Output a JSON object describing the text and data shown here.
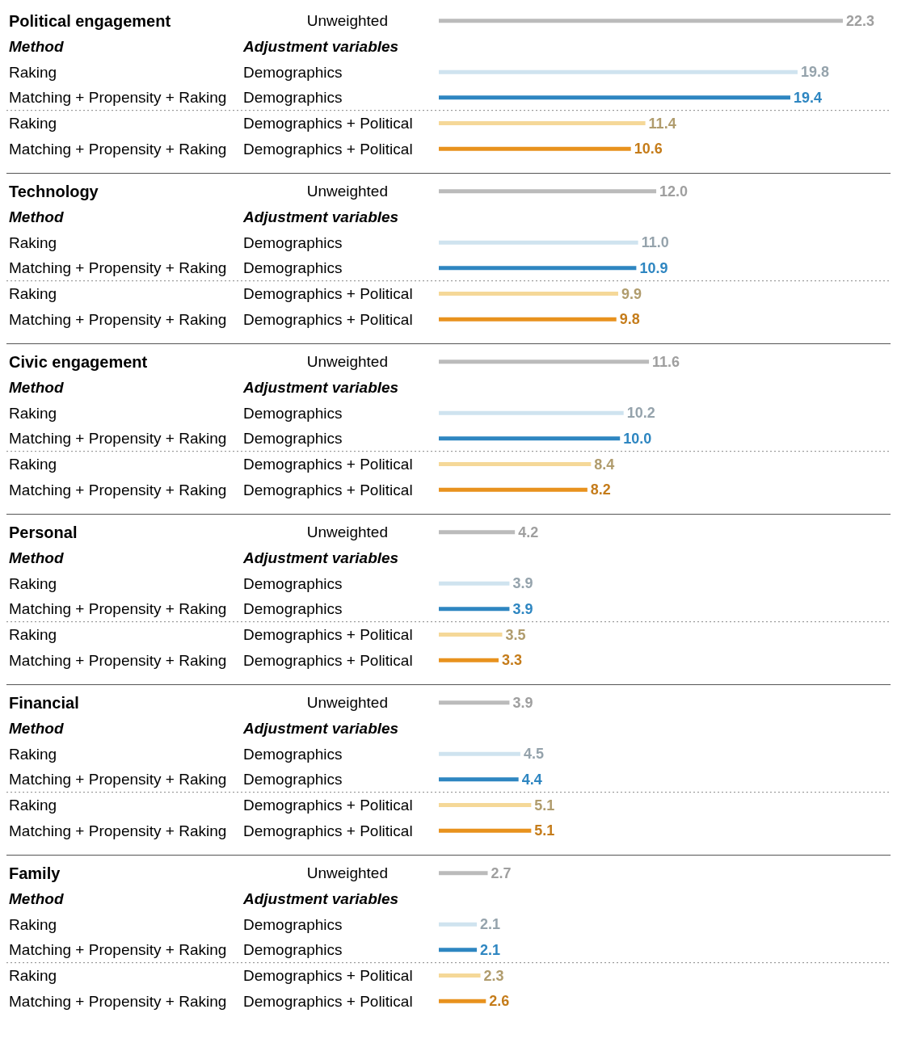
{
  "chart_data": [
    {
      "type": "bar",
      "orientation": "horizontal",
      "title": "Political engagement",
      "categories": [
        null,
        "Method",
        "Raking",
        "Matching + Propensity + Raking",
        "Raking",
        "Matching + Propensity + Raking"
      ],
      "y2_categories": [
        "Unweighted",
        "Adjustment variables",
        "Demographics",
        "Demographics",
        "Demographics + Political",
        "Demographics + Political"
      ],
      "values": [
        22.3,
        null,
        19.8,
        19.4,
        11.4,
        10.6
      ],
      "value_labels": [
        "22.3",
        null,
        "19.8",
        "19.4",
        "11.4",
        "10.6"
      ],
      "colors": [
        "#bbbbbb",
        null,
        "#cfe3ef",
        "#2e86c1",
        "#f5d898",
        "#e8921e"
      ]
    },
    {
      "type": "bar",
      "orientation": "horizontal",
      "title": "Technology",
      "categories": [
        null,
        "Method",
        "Raking",
        "Matching + Propensity + Raking",
        "Raking",
        "Matching + Propensity + Raking"
      ],
      "y2_categories": [
        "Unweighted",
        "Adjustment variables",
        "Demographics",
        "Demographics",
        "Demographics + Political",
        "Demographics + Political"
      ],
      "values": [
        12.0,
        null,
        11.0,
        10.9,
        9.9,
        9.8
      ],
      "value_labels": [
        "12.0",
        null,
        "11.0",
        "10.9",
        "9.9",
        "9.8"
      ],
      "colors": [
        "#bbbbbb",
        null,
        "#cfe3ef",
        "#2e86c1",
        "#f5d898",
        "#e8921e"
      ]
    },
    {
      "type": "bar",
      "orientation": "horizontal",
      "title": "Civic engagement",
      "categories": [
        null,
        "Method",
        "Raking",
        "Matching + Propensity + Raking",
        "Raking",
        "Matching + Propensity + Raking"
      ],
      "y2_categories": [
        "Unweighted",
        "Adjustment variables",
        "Demographics",
        "Demographics",
        "Demographics + Political",
        "Demographics + Political"
      ],
      "values": [
        11.6,
        null,
        10.2,
        10.0,
        8.4,
        8.2
      ],
      "value_labels": [
        "11.6",
        null,
        "10.2",
        "10.0",
        "8.4",
        "8.2"
      ],
      "colors": [
        "#bbbbbb",
        null,
        "#cfe3ef",
        "#2e86c1",
        "#f5d898",
        "#e8921e"
      ]
    },
    {
      "type": "bar",
      "orientation": "horizontal",
      "title": "Personal",
      "categories": [
        null,
        "Method",
        "Raking",
        "Matching + Propensity + Raking",
        "Raking",
        "Matching + Propensity + Raking"
      ],
      "y2_categories": [
        "Unweighted",
        "Adjustment variables",
        "Demographics",
        "Demographics",
        "Demographics + Political",
        "Demographics + Political"
      ],
      "values": [
        4.2,
        null,
        3.9,
        3.9,
        3.5,
        3.3
      ],
      "value_labels": [
        "4.2",
        null,
        "3.9",
        "3.9",
        "3.5",
        "3.3"
      ],
      "colors": [
        "#bbbbbb",
        null,
        "#cfe3ef",
        "#2e86c1",
        "#f5d898",
        "#e8921e"
      ]
    },
    {
      "type": "bar",
      "orientation": "horizontal",
      "title": "Financial",
      "categories": [
        null,
        "Method",
        "Raking",
        "Matching + Propensity + Raking",
        "Raking",
        "Matching + Propensity + Raking"
      ],
      "y2_categories": [
        "Unweighted",
        "Adjustment variables",
        "Demographics",
        "Demographics",
        "Demographics + Political",
        "Demographics + Political"
      ],
      "values": [
        3.9,
        null,
        4.5,
        4.4,
        5.1,
        5.1
      ],
      "value_labels": [
        "3.9",
        null,
        "4.5",
        "4.4",
        "5.1",
        "5.1"
      ],
      "colors": [
        "#bbbbbb",
        null,
        "#cfe3ef",
        "#2e86c1",
        "#f5d898",
        "#e8921e"
      ]
    },
    {
      "type": "bar",
      "orientation": "horizontal",
      "title": "Family",
      "categories": [
        null,
        "Method",
        "Raking",
        "Matching + Propensity + Raking",
        "Raking",
        "Matching + Propensity + Raking"
      ],
      "y2_categories": [
        "Unweighted",
        "Adjustment variables",
        "Demographics",
        "Demographics",
        "Demographics + Political",
        "Demographics + Political"
      ],
      "values": [
        2.7,
        null,
        2.1,
        2.1,
        2.3,
        2.6
      ],
      "value_labels": [
        "2.7",
        null,
        "2.1",
        "2.1",
        "2.3",
        "2.6"
      ],
      "colors": [
        "#bbbbbb",
        null,
        "#cfe3ef",
        "#2e86c1",
        "#f5d898",
        "#e8921e"
      ]
    }
  ]
}
